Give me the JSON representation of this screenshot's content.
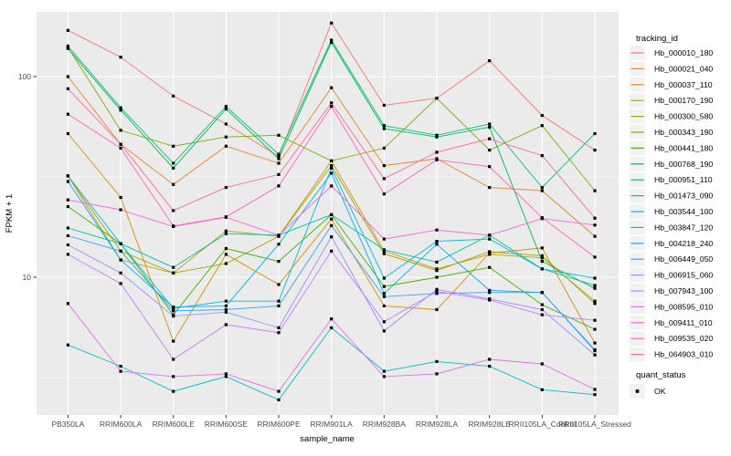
{
  "chart_data": {
    "type": "line",
    "title": "",
    "xlabel": "sample_name",
    "ylabel": "FPKM + 1",
    "y_scale": "log10",
    "y_ticks": [
      10,
      100
    ],
    "y_tick_labels": [
      "10",
      "100"
    ],
    "y_minor_ticks": [
      3.162,
      31.623
    ],
    "ylim": [
      2.2,
      200
    ],
    "grid": true,
    "panel_bg": "#EBEBEB",
    "grid_color": "#FFFFFF",
    "legend_key_bg": "#F2F2F2",
    "tick_label_color": "#4D4D4D",
    "marker_color": "#000000",
    "legend": {
      "title": "tracking_id",
      "position": "right"
    },
    "quant_status": {
      "title": "quant_status",
      "items": [
        {
          "label": "OK",
          "marker": "black-square"
        }
      ]
    },
    "categories": [
      "PB350LA",
      "RRIM600LA",
      "RRIM600LE",
      "RRIM600SE",
      "RRIM600PE",
      "RRIM901LA",
      "RRIM928BA",
      "RRIM928LA",
      "RRIM928LE",
      "RRII105LA_Control",
      "RRII105LA_Stressed"
    ],
    "series": [
      {
        "name": "Hb_000010_180",
        "color": "#F8766D",
        "values": [
          170,
          125,
          80,
          58,
          40,
          185,
          72,
          78,
          120,
          64,
          43
        ]
      },
      {
        "name": "Hb_000021_040",
        "color": "#E88526",
        "values": [
          100,
          46,
          29,
          45,
          37,
          88,
          36,
          39,
          28,
          27,
          16
        ]
      },
      {
        "name": "Hb_000037_110",
        "color": "#D89000",
        "values": [
          52,
          25,
          4.8,
          13,
          9.2,
          19.5,
          7.2,
          6.9,
          13.2,
          14,
          4.7
        ]
      },
      {
        "name": "Hb_000170_190",
        "color": "#C09B00",
        "values": [
          32,
          12.2,
          10.5,
          17,
          16,
          38,
          13.5,
          11,
          13,
          12.5,
          7.6
        ]
      },
      {
        "name": "Hb_000300_580",
        "color": "#A3A500",
        "values": [
          32,
          13.5,
          10.5,
          11.7,
          16,
          36,
          13.1,
          10.8,
          13.4,
          12.8,
          7.4
        ]
      },
      {
        "name": "Hb_000343_190",
        "color": "#7CAE00",
        "values": [
          140,
          54,
          45,
          50,
          51,
          38,
          44,
          78,
          43,
          57,
          27
        ]
      },
      {
        "name": "Hb_000441_180",
        "color": "#39B600",
        "values": [
          22.5,
          14.7,
          6.5,
          13.9,
          12,
          20.5,
          9.0,
          10,
          11.2,
          7.3,
          5.5
        ]
      },
      {
        "name": "Hb_000768_190",
        "color": "#00BB4E",
        "values": [
          138,
          68,
          35,
          69,
          39,
          148,
          55,
          50,
          56,
          12,
          8.8
        ]
      },
      {
        "name": "Hb_000951_110",
        "color": "#00BF7D",
        "values": [
          142,
          70,
          37,
          71,
          41,
          152,
          57,
          51,
          58,
          28,
          52
        ]
      },
      {
        "name": "Hb_001473_090",
        "color": "#00C1A3",
        "values": [
          17.6,
          14.7,
          11.2,
          16.5,
          16.2,
          20.5,
          13.7,
          11.9,
          16.2,
          11,
          9.1
        ]
      },
      {
        "name": "Hb_003544_100",
        "color": "#00BFC4",
        "values": [
          4.6,
          3.6,
          2.7,
          3.2,
          2.45,
          5.6,
          3.4,
          3.8,
          3.6,
          2.75,
          2.6
        ]
      },
      {
        "name": "Hb_003847_120",
        "color": "#00BAE0",
        "values": [
          32,
          14.7,
          7.0,
          7.6,
          7.6,
          35,
          9.9,
          15.1,
          15.5,
          11.0,
          9.9
        ]
      },
      {
        "name": "Hb_004218_240",
        "color": "#00B0F6",
        "values": [
          30,
          12.2,
          7.1,
          7.2,
          14.6,
          33,
          8.3,
          14.6,
          8.6,
          8.4,
          4.35
        ]
      },
      {
        "name": "Hb_006449_050",
        "color": "#35A2FF",
        "values": [
          16.1,
          13.5,
          6.8,
          6.9,
          7.2,
          18.1,
          8.0,
          8.3,
          8.4,
          8.4,
          4.3
        ]
      },
      {
        "name": "Hb_006915_060",
        "color": "#9590FF",
        "values": [
          14.5,
          10.5,
          6.4,
          6.7,
          5.6,
          15.9,
          5.4,
          8.7,
          7.8,
          6.9,
          4.1
        ]
      },
      {
        "name": "Hb_007943_100",
        "color": "#C77CFF",
        "values": [
          13.0,
          9.3,
          3.9,
          5.8,
          5.3,
          13.5,
          6.0,
          8.5,
          7.7,
          6.5,
          6.1
        ]
      },
      {
        "name": "Hb_008595_010",
        "color": "#E76BF3",
        "values": [
          7.4,
          3.4,
          3.2,
          3.3,
          2.7,
          6.2,
          3.2,
          3.3,
          3.9,
          3.7,
          2.76
        ]
      },
      {
        "name": "Hb_009411_010",
        "color": "#FA62DB",
        "values": [
          24.3,
          21.7,
          17.9,
          19.9,
          16.2,
          28.5,
          15.5,
          17.2,
          16.2,
          19.6,
          18.2
        ]
      },
      {
        "name": "Hb_009535_020",
        "color": "#FF62BC",
        "values": [
          65,
          44,
          18,
          20,
          28.5,
          71,
          26,
          38.5,
          35.6,
          19.8,
          12.6
        ]
      },
      {
        "name": "Hb_064903_010",
        "color": "#FF6A98",
        "values": [
          87,
          46,
          21.5,
          28,
          32.5,
          74,
          31,
          42,
          49,
          40.4,
          19.7
        ]
      }
    ]
  }
}
